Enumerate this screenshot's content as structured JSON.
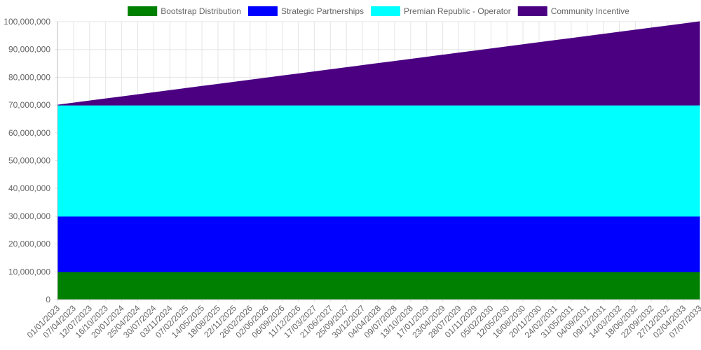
{
  "chart_data": {
    "type": "area",
    "stacked": true,
    "x": [
      "01/01/2023",
      "07/04/2023",
      "12/07/2023",
      "16/10/2023",
      "20/01/2024",
      "25/04/2024",
      "30/07/2024",
      "03/11/2024",
      "07/02/2025",
      "14/05/2025",
      "18/08/2025",
      "22/11/2025",
      "26/02/2026",
      "02/06/2026",
      "06/09/2026",
      "11/12/2026",
      "17/03/2027",
      "21/06/2027",
      "25/09/2027",
      "30/12/2027",
      "04/04/2028",
      "09/07/2028",
      "13/10/2028",
      "17/01/2029",
      "23/04/2029",
      "28/07/2029",
      "01/11/2029",
      "05/02/2030",
      "12/05/2030",
      "16/08/2030",
      "20/11/2030",
      "24/02/2031",
      "31/05/2031",
      "04/09/2031",
      "09/12/2031",
      "14/03/2032",
      "18/06/2032",
      "22/09/2032",
      "27/12/2032",
      "02/04/2033",
      "07/07/2033"
    ],
    "series": [
      {
        "name": "Bootstrap Distribution",
        "color": "#008000",
        "start": 10000000,
        "end": 10000000
      },
      {
        "name": "Strategic Partnerships",
        "color": "#0000ff",
        "start": 20000000,
        "end": 20000000
      },
      {
        "name": "Premian Republic - Operator",
        "color": "#00ffff",
        "start": 40000000,
        "end": 40000000
      },
      {
        "name": "Community Incentive",
        "color": "#4b0082",
        "start": 0,
        "end": 30000000
      }
    ],
    "ylim": [
      0,
      100000000
    ],
    "y_ticks": [
      "0",
      "10,000,000",
      "20,000,000",
      "30,000,000",
      "40,000,000",
      "50,000,000",
      "60,000,000",
      "70,000,000",
      "80,000,000",
      "90,000,000",
      "100,000,000"
    ],
    "grid": true,
    "legend_position": "top"
  }
}
